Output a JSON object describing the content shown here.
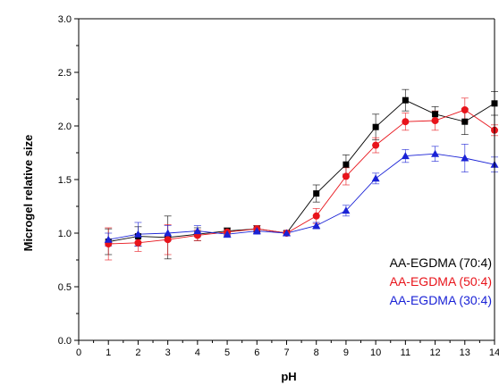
{
  "chart_data": {
    "type": "line",
    "title": "",
    "xlabel": "pH",
    "ylabel": "Microgel relative size",
    "xlim": [
      0,
      14
    ],
    "ylim": [
      0.0,
      3.0
    ],
    "x_ticks": [
      "0",
      "1",
      "2",
      "3",
      "4",
      "5",
      "6",
      "7",
      "8",
      "9",
      "10",
      "11",
      "12",
      "13",
      "14"
    ],
    "y_ticks": [
      "0.0",
      "0.5",
      "1.0",
      "1.5",
      "2.0",
      "2.5",
      "3.0"
    ],
    "legend_position": "bottom-right",
    "grid": false,
    "x": [
      1,
      2,
      3,
      4,
      5,
      6,
      7,
      8,
      9,
      10,
      11,
      12,
      13,
      14
    ],
    "series": [
      {
        "name": "AA-EGDMA (70:4)",
        "color": "#000000",
        "marker": "square",
        "values": [
          0.92,
          0.97,
          0.96,
          0.99,
          1.02,
          1.04,
          1.0,
          1.37,
          1.64,
          1.99,
          2.24,
          2.11,
          2.04,
          2.21
        ],
        "errors": [
          0.12,
          0.09,
          0.2,
          0.06,
          0.03,
          0.03,
          0.02,
          0.08,
          0.09,
          0.12,
          0.1,
          0.07,
          0.12,
          0.11
        ]
      },
      {
        "name": "AA-EGDMA (50:4)",
        "color": "#e8141b",
        "marker": "circle",
        "values": [
          0.9,
          0.91,
          0.94,
          0.98,
          1.01,
          1.04,
          1.0,
          1.16,
          1.53,
          1.82,
          2.04,
          2.05,
          2.15,
          1.96
        ],
        "errors": [
          0.15,
          0.08,
          0.14,
          0.05,
          0.03,
          0.03,
          0.02,
          0.07,
          0.08,
          0.07,
          0.08,
          0.09,
          0.11,
          0.05
        ]
      },
      {
        "name": "AA-EGDMA (30:4)",
        "color": "#1a22d6",
        "marker": "triangle",
        "values": [
          0.94,
          0.99,
          1.0,
          1.02,
          0.99,
          1.02,
          1.0,
          1.07,
          1.21,
          1.51,
          1.72,
          1.74,
          1.7,
          1.64
        ],
        "errors": [
          0.06,
          0.11,
          0.07,
          0.05,
          0.03,
          0.03,
          0.02,
          0.03,
          0.05,
          0.05,
          0.06,
          0.07,
          0.13,
          0.07
        ]
      }
    ]
  }
}
